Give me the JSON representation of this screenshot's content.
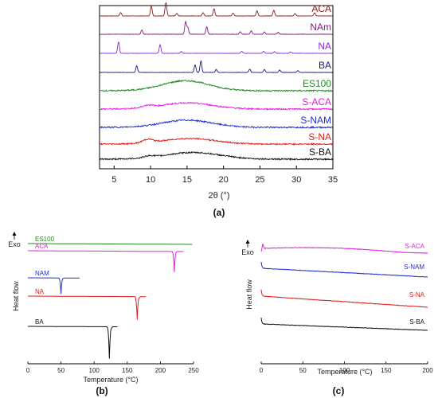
{
  "panels": {
    "a": "(a)",
    "b": "(b)",
    "c": "(c)"
  },
  "chart_data": [
    {
      "id": "a",
      "type": "line",
      "xlabel": "2θ (°)",
      "xlim": [
        3,
        35
      ],
      "xticks": [
        5,
        10,
        15,
        20,
        25,
        30,
        35
      ],
      "series": [
        {
          "name": "ACA",
          "color": "#8b1a1a",
          "kind": "peaks",
          "peaks": [
            [
              5.9,
              0.35
            ],
            [
              10.1,
              1.0
            ],
            [
              12.1,
              1.4
            ],
            [
              13.6,
              0.25
            ],
            [
              17.2,
              0.35
            ],
            [
              18.7,
              0.75
            ],
            [
              21.3,
              0.3
            ],
            [
              24.6,
              0.55
            ],
            [
              26.9,
              0.6
            ],
            [
              29.8,
              0.25
            ],
            [
              32.5,
              0.3
            ]
          ]
        },
        {
          "name": "NAm",
          "color": "#7a1f7a",
          "kind": "peaks",
          "peaks": [
            [
              8.8,
              0.45
            ],
            [
              14.8,
              1.3
            ],
            [
              15.1,
              0.7
            ],
            [
              17.7,
              0.8
            ],
            [
              22.3,
              0.25
            ],
            [
              23.8,
              0.35
            ],
            [
              25.6,
              0.25
            ],
            [
              27.5,
              0.2
            ]
          ]
        },
        {
          "name": "NA",
          "color": "#8a2be2",
          "kind": "peaks",
          "peaks": [
            [
              5.6,
              1.2
            ],
            [
              11.3,
              0.9
            ],
            [
              14.2,
              0.2
            ],
            [
              22.5,
              0.2
            ],
            [
              25.5,
              0.2
            ],
            [
              27.0,
              0.2
            ],
            [
              29.2,
              0.15
            ]
          ]
        },
        {
          "name": "BA",
          "color": "#1a1a7a",
          "kind": "peaks",
          "peaks": [
            [
              8.1,
              0.7
            ],
            [
              16.1,
              0.8
            ],
            [
              16.9,
              1.2
            ],
            [
              19.0,
              0.3
            ],
            [
              23.6,
              0.35
            ],
            [
              25.6,
              0.3
            ],
            [
              27.7,
              0.25
            ],
            [
              30.2,
              0.2
            ]
          ]
        },
        {
          "name": "ES100",
          "color": "#1e8c1e",
          "kind": "halo",
          "center": 14.8,
          "width": 3.2,
          "height": 0.9
        },
        {
          "name": "S-ACA",
          "color": "#e020e0",
          "kind": "halo",
          "center": 15.0,
          "width": 3.5,
          "height": 0.55,
          "extra": [
            [
              9.6,
              0.2
            ]
          ]
        },
        {
          "name": "S-NAM",
          "color": "#1f2fd0",
          "kind": "halo",
          "center": 15.0,
          "width": 3.4,
          "height": 0.65
        },
        {
          "name": "S-NA",
          "color": "#dd1f1f",
          "kind": "halo",
          "center": 15.3,
          "width": 3.6,
          "height": 0.5,
          "extra": [
            [
              9.6,
              0.3
            ]
          ]
        },
        {
          "name": "S-BA",
          "color": "#111111",
          "kind": "halo",
          "center": 15.8,
          "width": 3.8,
          "height": 0.6,
          "extra": [
            [
              9.8,
              0.15
            ]
          ]
        }
      ]
    },
    {
      "id": "b",
      "type": "line",
      "xlabel": "Temperature (°C)",
      "ylabel": "Heat flow",
      "exo_label": "Exo",
      "xlim": [
        0,
        250
      ],
      "xticks": [
        0,
        50,
        100,
        150,
        200,
        250
      ],
      "series": [
        {
          "name": "ES100",
          "color": "#1e8c1e",
          "x_end": 248,
          "peak": null
        },
        {
          "name": "ACA",
          "color": "#e020e0",
          "x_end": 235,
          "peak": 221
        },
        {
          "name": "NAM",
          "color": "#1f2fd0",
          "x_end": 78,
          "peak": 50
        },
        {
          "name": "NA",
          "color": "#dd1f1f",
          "x_end": 178,
          "peak": 165
        },
        {
          "name": "BA",
          "color": "#111111",
          "x_end": 135,
          "peak": 123
        }
      ]
    },
    {
      "id": "c",
      "type": "line",
      "xlabel": "Temperature (°C)",
      "ylabel": "Heat flow",
      "exo_label": "Exo",
      "xlim": [
        0,
        200
      ],
      "xticks": [
        0,
        50,
        100,
        150,
        200
      ],
      "series": [
        {
          "name": "S-ACA",
          "color": "#e020e0",
          "shape": "hump"
        },
        {
          "name": "S-NAM",
          "color": "#1f2fd0",
          "shape": "drift"
        },
        {
          "name": "S-NA",
          "color": "#dd1f1f",
          "shape": "drift"
        },
        {
          "name": "S-BA",
          "color": "#111111",
          "shape": "drift"
        }
      ]
    }
  ]
}
